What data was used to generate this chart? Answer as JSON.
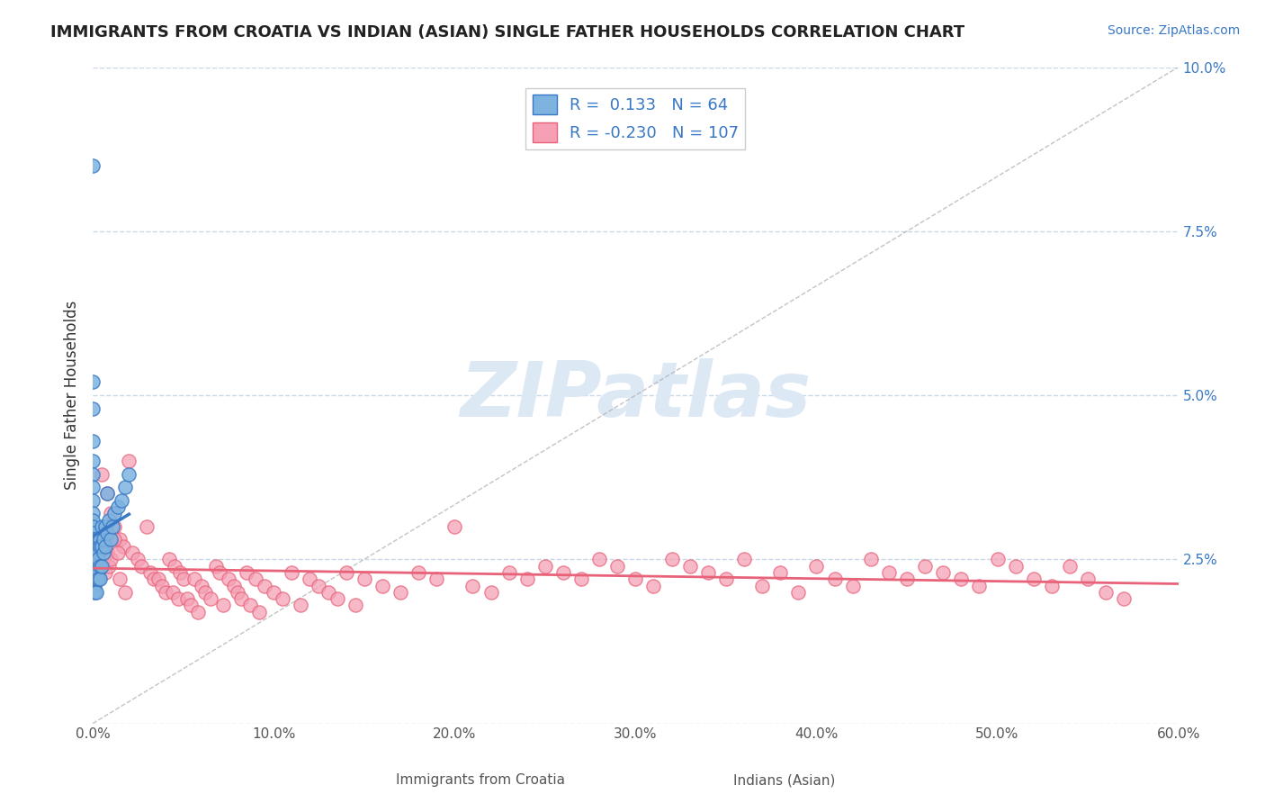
{
  "title": "IMMIGRANTS FROM CROATIA VS INDIAN (ASIAN) SINGLE FATHER HOUSEHOLDS CORRELATION CHART",
  "source_text": "Source: ZipAtlas.com",
  "xlabel_label": "Immigrants from Croatia",
  "ylabel_label": "Single Father Households",
  "legend_label1": "Immigrants from Croatia",
  "legend_label2": "Indians (Asian)",
  "r1": 0.133,
  "n1": 64,
  "r2": -0.23,
  "n2": 107,
  "xlim": [
    0.0,
    0.6
  ],
  "ylim": [
    0.0,
    0.1
  ],
  "xticks": [
    0.0,
    0.1,
    0.2,
    0.3,
    0.4,
    0.5,
    0.6
  ],
  "yticks": [
    0.0,
    0.025,
    0.05,
    0.075,
    0.1
  ],
  "ytick_labels": [
    "",
    "2.5%",
    "5.0%",
    "7.5%",
    "10.0%"
  ],
  "xtick_labels": [
    "0.0%",
    "10.0%",
    "20.0%",
    "30.0%",
    "40.0%",
    "50.0%",
    "60.0%"
  ],
  "color_blue": "#7eb3e0",
  "color_pink": "#f5a0b5",
  "line_color_blue": "#3878c5",
  "line_color_pink": "#e8637a",
  "watermark_text": "ZIPatlas",
  "watermark_color": "#dde8f5",
  "bg_color": "#ffffff",
  "grid_color": "#c8d8e8",
  "blue_scatter": [
    [
      0.0,
      0.085
    ],
    [
      0.0,
      0.052
    ],
    [
      0.0,
      0.048
    ],
    [
      0.0,
      0.043
    ],
    [
      0.0,
      0.04
    ],
    [
      0.0,
      0.038
    ],
    [
      0.0,
      0.036
    ],
    [
      0.0,
      0.034
    ],
    [
      0.0,
      0.032
    ],
    [
      0.0,
      0.031
    ],
    [
      0.0,
      0.03
    ],
    [
      0.0,
      0.029
    ],
    [
      0.0,
      0.028
    ],
    [
      0.0,
      0.027
    ],
    [
      0.0,
      0.026
    ],
    [
      0.0,
      0.025
    ],
    [
      0.0,
      0.025
    ],
    [
      0.0,
      0.024
    ],
    [
      0.0,
      0.024
    ],
    [
      0.0,
      0.023
    ],
    [
      0.0,
      0.023
    ],
    [
      0.0,
      0.022
    ],
    [
      0.0,
      0.022
    ],
    [
      0.0,
      0.021
    ],
    [
      0.001,
      0.028
    ],
    [
      0.001,
      0.026
    ],
    [
      0.001,
      0.025
    ],
    [
      0.001,
      0.024
    ],
    [
      0.001,
      0.023
    ],
    [
      0.001,
      0.022
    ],
    [
      0.001,
      0.021
    ],
    [
      0.001,
      0.02
    ],
    [
      0.002,
      0.027
    ],
    [
      0.002,
      0.025
    ],
    [
      0.002,
      0.024
    ],
    [
      0.002,
      0.023
    ],
    [
      0.002,
      0.022
    ],
    [
      0.002,
      0.02
    ],
    [
      0.003,
      0.028
    ],
    [
      0.003,
      0.026
    ],
    [
      0.003,
      0.025
    ],
    [
      0.003,
      0.023
    ],
    [
      0.003,
      0.022
    ],
    [
      0.004,
      0.028
    ],
    [
      0.004,
      0.027
    ],
    [
      0.004,
      0.024
    ],
    [
      0.004,
      0.022
    ],
    [
      0.005,
      0.03
    ],
    [
      0.005,
      0.027
    ],
    [
      0.005,
      0.024
    ],
    [
      0.006,
      0.028
    ],
    [
      0.006,
      0.026
    ],
    [
      0.007,
      0.03
    ],
    [
      0.007,
      0.027
    ],
    [
      0.008,
      0.029
    ],
    [
      0.008,
      0.035
    ],
    [
      0.009,
      0.031
    ],
    [
      0.01,
      0.028
    ],
    [
      0.011,
      0.03
    ],
    [
      0.012,
      0.032
    ],
    [
      0.014,
      0.033
    ],
    [
      0.016,
      0.034
    ],
    [
      0.018,
      0.036
    ],
    [
      0.02,
      0.038
    ]
  ],
  "pink_scatter": [
    [
      0.005,
      0.038
    ],
    [
      0.008,
      0.035
    ],
    [
      0.01,
      0.032
    ],
    [
      0.012,
      0.03
    ],
    [
      0.015,
      0.028
    ],
    [
      0.017,
      0.027
    ],
    [
      0.02,
      0.04
    ],
    [
      0.022,
      0.026
    ],
    [
      0.025,
      0.025
    ],
    [
      0.027,
      0.024
    ],
    [
      0.03,
      0.03
    ],
    [
      0.032,
      0.023
    ],
    [
      0.034,
      0.022
    ],
    [
      0.036,
      0.022
    ],
    [
      0.038,
      0.021
    ],
    [
      0.04,
      0.02
    ],
    [
      0.042,
      0.025
    ],
    [
      0.044,
      0.02
    ],
    [
      0.045,
      0.024
    ],
    [
      0.047,
      0.019
    ],
    [
      0.048,
      0.023
    ],
    [
      0.05,
      0.022
    ],
    [
      0.052,
      0.019
    ],
    [
      0.054,
      0.018
    ],
    [
      0.056,
      0.022
    ],
    [
      0.058,
      0.017
    ],
    [
      0.06,
      0.021
    ],
    [
      0.062,
      0.02
    ],
    [
      0.065,
      0.019
    ],
    [
      0.068,
      0.024
    ],
    [
      0.07,
      0.023
    ],
    [
      0.072,
      0.018
    ],
    [
      0.075,
      0.022
    ],
    [
      0.078,
      0.021
    ],
    [
      0.08,
      0.02
    ],
    [
      0.082,
      0.019
    ],
    [
      0.085,
      0.023
    ],
    [
      0.087,
      0.018
    ],
    [
      0.09,
      0.022
    ],
    [
      0.092,
      0.017
    ],
    [
      0.095,
      0.021
    ],
    [
      0.1,
      0.02
    ],
    [
      0.105,
      0.019
    ],
    [
      0.11,
      0.023
    ],
    [
      0.115,
      0.018
    ],
    [
      0.12,
      0.022
    ],
    [
      0.125,
      0.021
    ],
    [
      0.13,
      0.02
    ],
    [
      0.135,
      0.019
    ],
    [
      0.14,
      0.023
    ],
    [
      0.145,
      0.018
    ],
    [
      0.15,
      0.022
    ],
    [
      0.16,
      0.021
    ],
    [
      0.17,
      0.02
    ],
    [
      0.18,
      0.023
    ],
    [
      0.19,
      0.022
    ],
    [
      0.2,
      0.03
    ],
    [
      0.21,
      0.021
    ],
    [
      0.22,
      0.02
    ],
    [
      0.23,
      0.023
    ],
    [
      0.24,
      0.022
    ],
    [
      0.25,
      0.024
    ],
    [
      0.26,
      0.023
    ],
    [
      0.27,
      0.022
    ],
    [
      0.28,
      0.025
    ],
    [
      0.29,
      0.024
    ],
    [
      0.3,
      0.022
    ],
    [
      0.31,
      0.021
    ],
    [
      0.32,
      0.025
    ],
    [
      0.33,
      0.024
    ],
    [
      0.34,
      0.023
    ],
    [
      0.35,
      0.022
    ],
    [
      0.36,
      0.025
    ],
    [
      0.37,
      0.021
    ],
    [
      0.38,
      0.023
    ],
    [
      0.39,
      0.02
    ],
    [
      0.4,
      0.024
    ],
    [
      0.41,
      0.022
    ],
    [
      0.42,
      0.021
    ],
    [
      0.43,
      0.025
    ],
    [
      0.44,
      0.023
    ],
    [
      0.45,
      0.022
    ],
    [
      0.46,
      0.024
    ],
    [
      0.47,
      0.023
    ],
    [
      0.48,
      0.022
    ],
    [
      0.49,
      0.021
    ],
    [
      0.5,
      0.025
    ],
    [
      0.51,
      0.024
    ],
    [
      0.52,
      0.022
    ],
    [
      0.53,
      0.021
    ],
    [
      0.54,
      0.024
    ],
    [
      0.55,
      0.022
    ],
    [
      0.56,
      0.02
    ],
    [
      0.57,
      0.019
    ],
    [
      0.002,
      0.025
    ],
    [
      0.003,
      0.026
    ],
    [
      0.004,
      0.024
    ],
    [
      0.005,
      0.027
    ],
    [
      0.006,
      0.025
    ],
    [
      0.007,
      0.023
    ],
    [
      0.008,
      0.026
    ],
    [
      0.009,
      0.024
    ],
    [
      0.01,
      0.025
    ],
    [
      0.012,
      0.028
    ],
    [
      0.014,
      0.026
    ],
    [
      0.015,
      0.022
    ],
    [
      0.018,
      0.02
    ]
  ]
}
